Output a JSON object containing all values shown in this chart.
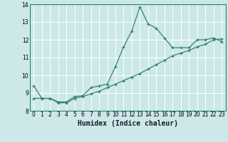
{
  "xlabel": "Humidex (Indice chaleur)",
  "x_values": [
    0,
    1,
    2,
    3,
    4,
    5,
    6,
    7,
    8,
    9,
    10,
    11,
    12,
    13,
    14,
    15,
    16,
    17,
    18,
    19,
    20,
    21,
    22,
    23
  ],
  "line1_y": [
    9.4,
    8.7,
    8.7,
    8.5,
    8.5,
    8.8,
    8.85,
    9.3,
    9.4,
    9.5,
    10.5,
    11.6,
    12.5,
    13.85,
    12.9,
    12.65,
    12.1,
    11.55,
    11.55,
    11.55,
    12.0,
    12.0,
    12.1,
    11.9
  ],
  "line2_y": [
    8.7,
    8.7,
    8.7,
    8.45,
    8.45,
    8.7,
    8.8,
    8.95,
    9.1,
    9.3,
    9.5,
    9.7,
    9.9,
    10.1,
    10.35,
    10.6,
    10.85,
    11.1,
    11.25,
    11.4,
    11.6,
    11.75,
    12.0,
    12.05
  ],
  "line_color": "#2e7d6e",
  "bg_color": "#cce8e8",
  "grid_color": "#b0d8d8",
  "ylim": [
    8,
    14
  ],
  "xlim_min": -0.5,
  "xlim_max": 23.5,
  "yticks": [
    8,
    9,
    10,
    11,
    12,
    13,
    14
  ],
  "xticks": [
    0,
    1,
    2,
    3,
    4,
    5,
    6,
    7,
    8,
    9,
    10,
    11,
    12,
    13,
    14,
    15,
    16,
    17,
    18,
    19,
    20,
    21,
    22,
    23
  ],
  "xlabel_fontsize": 7.0,
  "tick_fontsize": 5.5
}
